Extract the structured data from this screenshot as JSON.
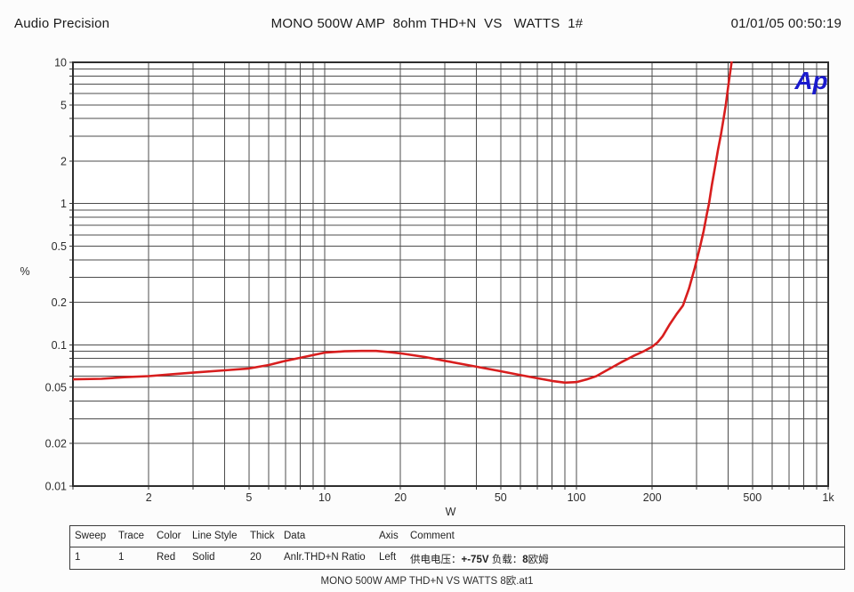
{
  "header": {
    "brand": "Audio Precision",
    "title": "MONO 500W AMP  8ohm THD+N  VS   WATTS  1#",
    "datetime": "01/01/05 00:50:19"
  },
  "logo": {
    "text": "Ap",
    "color": "#1a1acd"
  },
  "chart_data": {
    "type": "line",
    "title": "MONO 500W AMP 8ohm THD+N VS WATTS",
    "xlabel": "W",
    "ylabel": "%",
    "x_axis": {
      "scale": "log",
      "min": 1,
      "max": 1000,
      "tick_values": [
        2,
        5,
        10,
        20,
        50,
        100,
        200,
        500,
        1000
      ],
      "tick_labels": [
        "2",
        "5",
        "10",
        "20",
        "50",
        "100",
        "200",
        "500",
        "1k"
      ]
    },
    "y_axis": {
      "scale": "log",
      "min": 0.01,
      "max": 10,
      "tick_values": [
        10,
        5,
        2,
        1,
        0.5,
        0.2,
        0.1,
        0.05,
        0.02,
        0.01
      ],
      "tick_labels": [
        "10",
        "5",
        "2",
        "1",
        "0.5",
        "0.2",
        "0.1",
        "0.05",
        "0.02",
        "0.01"
      ]
    },
    "grid": "full log minor grid, dark gray",
    "series": [
      {
        "name": "Anlr.THD+N Ratio",
        "color": "#d81e1e",
        "points": [
          [
            1,
            0.057
          ],
          [
            1.3,
            0.0575
          ],
          [
            1.6,
            0.059
          ],
          [
            2,
            0.06
          ],
          [
            2.5,
            0.062
          ],
          [
            3,
            0.0635
          ],
          [
            4,
            0.066
          ],
          [
            5,
            0.068
          ],
          [
            6,
            0.072
          ],
          [
            7,
            0.077
          ],
          [
            8,
            0.081
          ],
          [
            10,
            0.088
          ],
          [
            12,
            0.09
          ],
          [
            14,
            0.0905
          ],
          [
            16,
            0.0905
          ],
          [
            18,
            0.089
          ],
          [
            20,
            0.087
          ],
          [
            25,
            0.082
          ],
          [
            30,
            0.077
          ],
          [
            40,
            0.07
          ],
          [
            50,
            0.065
          ],
          [
            60,
            0.061
          ],
          [
            70,
            0.058
          ],
          [
            80,
            0.0555
          ],
          [
            90,
            0.054
          ],
          [
            100,
            0.0545
          ],
          [
            110,
            0.057
          ],
          [
            120,
            0.06
          ],
          [
            130,
            0.065
          ],
          [
            150,
            0.075
          ],
          [
            170,
            0.084
          ],
          [
            185,
            0.09
          ],
          [
            200,
            0.097
          ],
          [
            210,
            0.104
          ],
          [
            220,
            0.115
          ],
          [
            235,
            0.14
          ],
          [
            250,
            0.165
          ],
          [
            265,
            0.19
          ],
          [
            280,
            0.25
          ],
          [
            295,
            0.35
          ],
          [
            310,
            0.5
          ],
          [
            320,
            0.64
          ],
          [
            330,
            0.85
          ],
          [
            336,
            1.0
          ],
          [
            345,
            1.35
          ],
          [
            355,
            1.8
          ],
          [
            365,
            2.4
          ],
          [
            375,
            3.1
          ],
          [
            385,
            4.1
          ],
          [
            392,
            5.0
          ],
          [
            400,
            6.6
          ],
          [
            406,
            8.0
          ],
          [
            412,
            9.6
          ],
          [
            416,
            11.0
          ]
        ]
      }
    ]
  },
  "table": {
    "headers": [
      "Sweep",
      "Trace",
      "Color",
      "Line Style",
      "Thick",
      "Data",
      "Axis",
      "Comment"
    ],
    "row": {
      "sweep": "1",
      "trace": "1",
      "color": "Red",
      "line_style": "Solid",
      "thick": "20",
      "data": "Anlr.THD+N Ratio",
      "axis": "Left",
      "comment_parts": [
        {
          "text": "供电电压：",
          "emphasis": false
        },
        {
          "text": "+-75V",
          "emphasis": true
        },
        {
          "text": "  负载：",
          "emphasis": false
        },
        {
          "text": "8",
          "emphasis": true
        },
        {
          "text": "欧姆",
          "emphasis": false
        }
      ]
    }
  },
  "caption": "MONO 500W AMP THD+N VS WATTS 8欧.at1"
}
